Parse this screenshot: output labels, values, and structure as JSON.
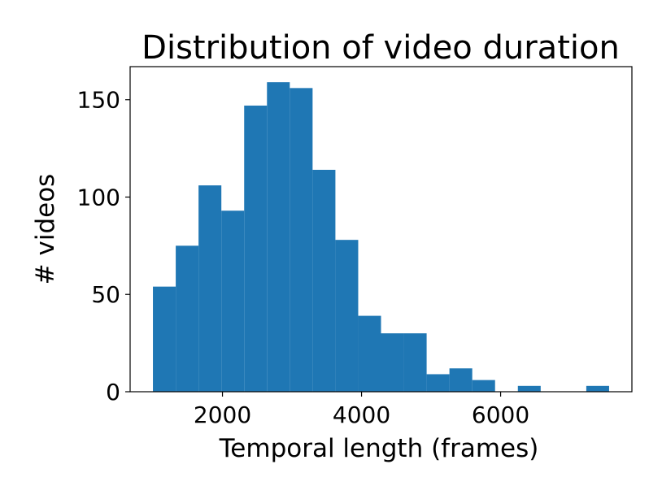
{
  "chart_data": {
    "type": "histogram",
    "title": "Distribution of video duration",
    "x_label": "Temporal length (frames)",
    "y_label": "# videos",
    "bins": [
      1000,
      1328,
      1656,
      1984,
      2312,
      2640,
      2968,
      3296,
      3624,
      3952,
      4280,
      4608,
      4936,
      5264,
      5592,
      5920,
      6248,
      6576,
      6904,
      7232,
      7560
    ],
    "counts": [
      54,
      75,
      106,
      93,
      147,
      159,
      156,
      114,
      78,
      39,
      30,
      30,
      9,
      12,
      6,
      0,
      3,
      0,
      0,
      3
    ],
    "color": "#1f77b4",
    "xlim": [
      672,
      7888
    ],
    "xticks": [
      2000,
      4000,
      6000
    ],
    "ylim": [
      0,
      167
    ],
    "yticks": [
      0,
      50,
      100,
      150
    ]
  }
}
